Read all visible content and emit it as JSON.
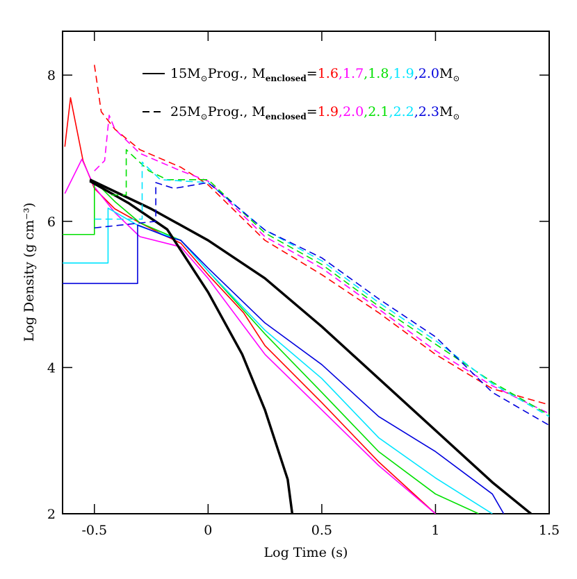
{
  "chart_data": {
    "type": "line",
    "x_label": "Log Time (s)",
    "y_label": "Log Density (g cm⁻³)",
    "xlim": [
      -0.64,
      1.5
    ],
    "ylim": [
      2,
      8.6
    ],
    "xticks": [
      -0.5,
      0,
      0.5,
      1,
      1.5
    ],
    "yticks": [
      2,
      4,
      6,
      8
    ],
    "legend_groups": [
      {
        "dash": "solid",
        "label": "15M",
        "label_sub": "⊙",
        "label2": "Prog., M",
        "label2_sub": "enclosed",
        "equals": "=",
        "separator": ",",
        "unit": "M",
        "unit_sub": "⊙"
      },
      {
        "dash": "dashed",
        "label": "25M",
        "label_sub": "⊙",
        "label2": "Prog., M",
        "label2_sub": "enclosed",
        "equals": "=",
        "separator": ",",
        "unit": "M",
        "unit_sub": "⊙"
      }
    ],
    "series": [
      {
        "name": "1.6",
        "color": "#ff0000",
        "dash": "solid",
        "x": [
          -0.63,
          -0.605,
          -0.55,
          -0.5,
          -0.41,
          -0.3,
          -0.18,
          -0.12,
          0,
          0.156,
          0.25,
          0.5,
          0.75,
          1.0
        ],
        "values": [
          7.02,
          7.69,
          6.83,
          6.45,
          6.17,
          5.98,
          5.79,
          5.7,
          5.27,
          4.75,
          4.3,
          3.52,
          2.71,
          2.0
        ]
      },
      {
        "name": "1.7",
        "color": "#ff00ff",
        "dash": "solid",
        "x": [
          -0.63,
          -0.555,
          -0.5,
          -0.41,
          -0.3,
          -0.12,
          0,
          0.25,
          0.5,
          0.75,
          1.0
        ],
        "values": [
          6.38,
          6.85,
          6.47,
          6.12,
          5.79,
          5.65,
          5.22,
          4.18,
          3.42,
          2.66,
          2.0
        ]
      },
      {
        "name": "1.8",
        "color": "#00e000",
        "dash": "solid",
        "x": [
          -0.64,
          -0.5,
          -0.5,
          -0.41,
          -0.3,
          -0.12,
          0,
          0.25,
          0.5,
          0.75,
          1.0,
          1.19
        ],
        "values": [
          5.82,
          5.82,
          6.55,
          6.27,
          5.98,
          5.74,
          5.32,
          4.46,
          3.66,
          2.85,
          2.27,
          2.0
        ]
      },
      {
        "name": "1.9",
        "color": "#00e5ff",
        "dash": "solid",
        "x": [
          -0.64,
          -0.44,
          -0.44,
          -0.3,
          -0.12,
          0,
          0.25,
          0.5,
          0.75,
          1.0,
          1.25
        ],
        "values": [
          5.43,
          5.43,
          6.18,
          5.93,
          5.74,
          5.32,
          4.51,
          3.85,
          3.04,
          2.49,
          2.0
        ]
      },
      {
        "name": "2.0",
        "color": "#0000dd",
        "dash": "solid",
        "x": [
          -0.64,
          -0.31,
          -0.31,
          -0.18,
          -0.12,
          0,
          0.25,
          0.5,
          0.75,
          1.0,
          1.25,
          1.3
        ],
        "values": [
          5.15,
          5.15,
          5.95,
          5.79,
          5.74,
          5.36,
          4.61,
          4.04,
          3.33,
          2.85,
          2.27,
          2.0
        ]
      },
      {
        "color": "#000000",
        "dash": "solid",
        "width": 3.5,
        "x": [
          -0.52,
          -0.35,
          -0.18,
          0,
          0.15,
          0.25,
          0.35,
          0.37
        ],
        "values": [
          6.55,
          6.25,
          5.89,
          5.03,
          4.18,
          3.42,
          2.47,
          2.0
        ]
      },
      {
        "color": "#000000",
        "dash": "solid",
        "width": 3.5,
        "x": [
          -0.52,
          -0.25,
          0,
          0.25,
          0.5,
          0.75,
          1.0,
          1.25,
          1.42
        ],
        "values": [
          6.57,
          6.17,
          5.74,
          5.22,
          4.56,
          3.85,
          3.14,
          2.43,
          2.0
        ]
      },
      {
        "name": "1.9",
        "color": "#ff0000",
        "dash": "dashed",
        "x": [
          -0.5,
          -0.47,
          -0.41,
          -0.3,
          -0.12,
          0,
          0.25,
          0.5,
          0.75,
          1.0,
          1.25,
          1.5
        ],
        "values": [
          8.14,
          7.5,
          7.26,
          6.98,
          6.74,
          6.5,
          5.74,
          5.27,
          4.75,
          4.18,
          3.71,
          3.49
        ]
      },
      {
        "name": "2.0",
        "color": "#ff00ff",
        "dash": "dashed",
        "x": [
          -0.5,
          -0.455,
          -0.435,
          -0.41,
          -0.3,
          -0.12,
          0,
          0.25,
          0.5,
          0.75,
          1.0,
          1.25,
          1.5
        ],
        "values": [
          6.69,
          6.83,
          7.45,
          7.26,
          6.93,
          6.69,
          6.55,
          5.79,
          5.36,
          4.8,
          4.23,
          3.75,
          3.37
        ]
      },
      {
        "name": "2.1",
        "color": "#00e000",
        "dash": "dashed",
        "x": [
          -0.425,
          -0.36,
          -0.36,
          -0.26,
          -0.18,
          0,
          0.25,
          0.5,
          0.75,
          1.0,
          1.25,
          1.5
        ],
        "values": [
          6.36,
          6.36,
          6.98,
          6.69,
          6.57,
          6.57,
          5.84,
          5.41,
          4.84,
          4.32,
          3.8,
          3.35
        ]
      },
      {
        "name": "2.2",
        "color": "#00e5ff",
        "dash": "dashed",
        "x": [
          -0.5,
          -0.29,
          -0.29,
          -0.21,
          0,
          0.25,
          0.5,
          0.75,
          1.0,
          1.25,
          1.5
        ],
        "values": [
          6.03,
          6.03,
          6.81,
          6.57,
          6.53,
          5.88,
          5.46,
          4.89,
          4.37,
          3.78,
          3.33
        ]
      },
      {
        "name": "2.3",
        "color": "#0000dd",
        "dash": "dashed",
        "x": [
          -0.5,
          -0.23,
          -0.23,
          -0.15,
          0,
          0.25,
          0.5,
          0.75,
          1.0,
          1.25,
          1.5
        ],
        "values": [
          5.91,
          6.0,
          6.53,
          6.45,
          6.53,
          5.88,
          5.5,
          4.94,
          4.42,
          3.66,
          3.21
        ]
      }
    ]
  }
}
